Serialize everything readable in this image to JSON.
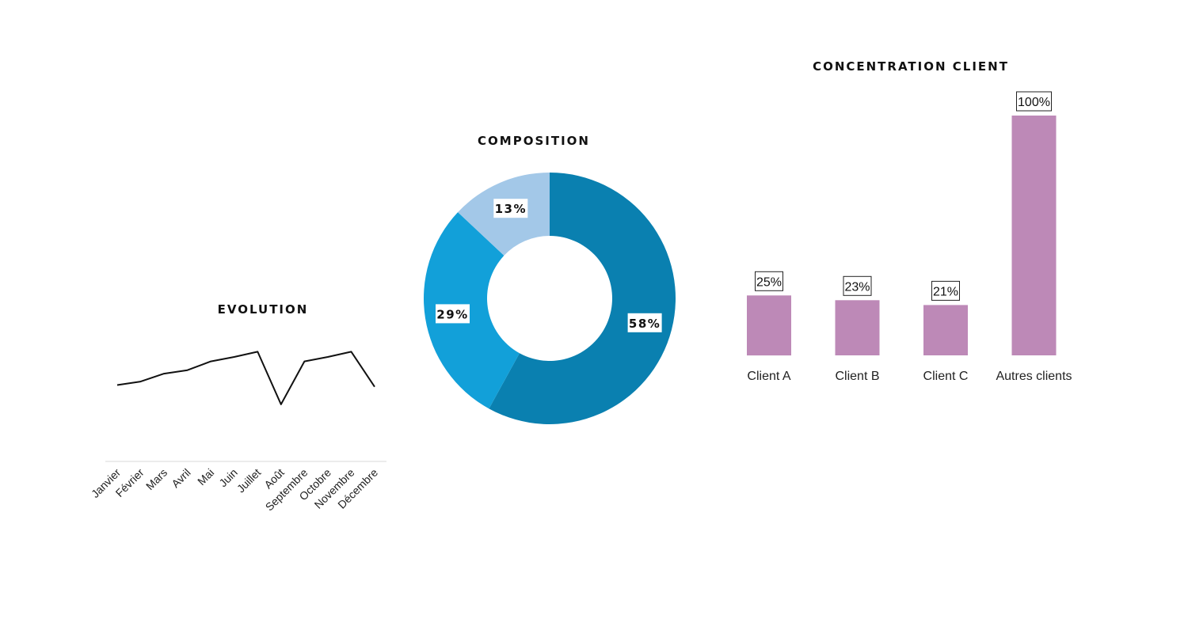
{
  "chart_data": [
    {
      "type": "line",
      "title": "EVOLUTION",
      "x": [
        "Janvier",
        "Février",
        "Mars",
        "Avril",
        "Mai",
        "Juin",
        "Juillet",
        "Août",
        "Septembre",
        "Octobre",
        "Novembre",
        "Décembre"
      ],
      "series": [
        {
          "values": [
            32,
            36,
            45,
            49,
            59,
            64,
            70,
            10,
            59,
            64,
            70,
            30
          ]
        }
      ],
      "ylim": [
        -55,
        110
      ],
      "grid": false,
      "line_color": "#111111",
      "axis_color": "#d9d9d9"
    },
    {
      "type": "pie",
      "title": "COMPOSITION",
      "donut": true,
      "slices": [
        {
          "value": 58,
          "label": "58%",
          "color": "#0a80b0"
        },
        {
          "value": 29,
          "label": "29%",
          "color": "#12a0d9"
        },
        {
          "value": 13,
          "label": "13%",
          "color": "#a3c8e8"
        }
      ]
    },
    {
      "type": "bar",
      "title": "CONCENTRATION CLIENT",
      "categories": [
        "Client A",
        "Client B",
        "Client C",
        "Autres clients"
      ],
      "values": [
        25,
        23,
        21,
        100
      ],
      "labels": [
        "25%",
        "23%",
        "21%",
        "100%"
      ],
      "ylim": [
        0,
        100
      ],
      "bar_color": "#bd89b7"
    }
  ]
}
